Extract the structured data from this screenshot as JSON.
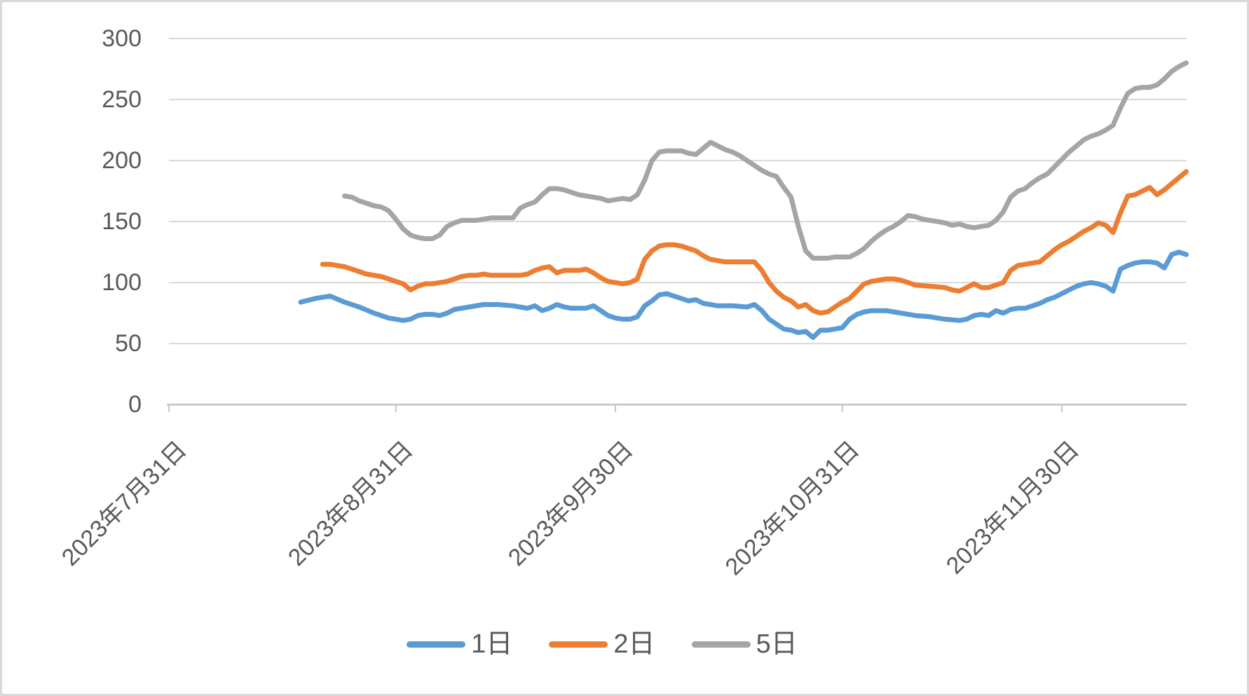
{
  "chart_data": {
    "type": "line",
    "title": "",
    "xlabel": "",
    "ylabel": "",
    "grid": true,
    "legend_position": "bottom",
    "ylim": [
      0,
      300
    ],
    "y_ticks": [
      0,
      50,
      100,
      150,
      200,
      250,
      300
    ],
    "x_axis": {
      "unit": "days since 2023-07-31 (date axis)",
      "tick_day_offsets": [
        0,
        31,
        61,
        92,
        122
      ],
      "label_dates": [
        "2023年7月31日",
        "2023年8月31日",
        "2023年9月30日",
        "2023年10月31日",
        "2023年11月30日"
      ]
    },
    "colors": {
      "background": "#FFFFFF",
      "frame_border": "#D9D9D9",
      "gridline": "#D9D9D9",
      "axis_line": "#C8C8C8",
      "text": "#595959"
    },
    "series": [
      {
        "name": "1日",
        "color": "#5B9BD5",
        "points": [
          [
            18,
            84
          ],
          [
            20,
            87
          ],
          [
            21,
            88
          ],
          [
            22,
            89
          ],
          [
            24,
            84
          ],
          [
            26,
            80
          ],
          [
            28,
            75
          ],
          [
            30,
            71
          ],
          [
            31,
            70
          ],
          [
            32,
            69
          ],
          [
            33,
            70
          ],
          [
            34,
            73
          ],
          [
            35,
            74
          ],
          [
            36,
            74
          ],
          [
            37,
            73
          ],
          [
            38,
            75
          ],
          [
            39,
            78
          ],
          [
            41,
            80
          ],
          [
            43,
            82
          ],
          [
            45,
            82
          ],
          [
            47,
            81
          ],
          [
            49,
            79
          ],
          [
            50,
            81
          ],
          [
            51,
            77
          ],
          [
            52,
            79
          ],
          [
            53,
            82
          ],
          [
            54,
            80
          ],
          [
            55,
            79
          ],
          [
            57,
            79
          ],
          [
            58,
            81
          ],
          [
            59,
            77
          ],
          [
            60,
            73
          ],
          [
            61,
            71
          ],
          [
            62,
            70
          ],
          [
            63,
            70
          ],
          [
            64,
            72
          ],
          [
            65,
            81
          ],
          [
            66,
            85
          ],
          [
            67,
            90
          ],
          [
            68,
            91
          ],
          [
            69,
            89
          ],
          [
            70,
            87
          ],
          [
            71,
            85
          ],
          [
            72,
            86
          ],
          [
            73,
            83
          ],
          [
            74,
            82
          ],
          [
            75,
            81
          ],
          [
            77,
            81
          ],
          [
            79,
            80
          ],
          [
            80,
            82
          ],
          [
            81,
            77
          ],
          [
            82,
            70
          ],
          [
            83,
            66
          ],
          [
            84,
            62
          ],
          [
            85,
            61
          ],
          [
            86,
            59
          ],
          [
            87,
            60
          ],
          [
            88,
            55
          ],
          [
            89,
            61
          ],
          [
            90,
            61
          ],
          [
            91,
            62
          ],
          [
            92,
            63
          ],
          [
            93,
            70
          ],
          [
            94,
            74
          ],
          [
            95,
            76
          ],
          [
            96,
            77
          ],
          [
            98,
            77
          ],
          [
            99,
            76
          ],
          [
            100,
            75
          ],
          [
            102,
            73
          ],
          [
            104,
            72
          ],
          [
            106,
            70
          ],
          [
            108,
            69
          ],
          [
            109,
            70
          ],
          [
            110,
            73
          ],
          [
            111,
            74
          ],
          [
            112,
            73
          ],
          [
            113,
            77
          ],
          [
            114,
            75
          ],
          [
            115,
            78
          ],
          [
            116,
            79
          ],
          [
            117,
            79
          ],
          [
            118,
            81
          ],
          [
            119,
            83
          ],
          [
            120,
            86
          ],
          [
            121,
            88
          ],
          [
            122,
            91
          ],
          [
            123,
            94
          ],
          [
            124,
            97
          ],
          [
            125,
            99
          ],
          [
            126,
            100
          ],
          [
            127,
            99
          ],
          [
            128,
            97
          ],
          [
            129,
            93
          ],
          [
            130,
            111
          ],
          [
            131,
            114
          ],
          [
            132,
            116
          ],
          [
            133,
            117
          ],
          [
            134,
            117
          ],
          [
            135,
            116
          ],
          [
            136,
            112
          ],
          [
            137,
            123
          ],
          [
            138,
            125
          ],
          [
            139,
            123
          ]
        ]
      },
      {
        "name": "2日",
        "color": "#ED7D31",
        "points": [
          [
            21,
            115
          ],
          [
            22,
            115
          ],
          [
            23,
            114
          ],
          [
            24,
            113
          ],
          [
            25,
            111
          ],
          [
            26,
            109
          ],
          [
            27,
            107
          ],
          [
            28,
            106
          ],
          [
            29,
            105
          ],
          [
            30,
            103
          ],
          [
            31,
            101
          ],
          [
            32,
            99
          ],
          [
            33,
            94
          ],
          [
            34,
            97
          ],
          [
            35,
            99
          ],
          [
            36,
            99
          ],
          [
            37,
            100
          ],
          [
            38,
            101
          ],
          [
            39,
            103
          ],
          [
            40,
            105
          ],
          [
            41,
            106
          ],
          [
            42,
            106
          ],
          [
            43,
            107
          ],
          [
            44,
            106
          ],
          [
            46,
            106
          ],
          [
            48,
            106
          ],
          [
            49,
            107
          ],
          [
            50,
            110
          ],
          [
            51,
            112
          ],
          [
            52,
            113
          ],
          [
            53,
            108
          ],
          [
            54,
            110
          ],
          [
            55,
            110
          ],
          [
            56,
            110
          ],
          [
            57,
            111
          ],
          [
            58,
            108
          ],
          [
            59,
            104
          ],
          [
            60,
            101
          ],
          [
            61,
            100
          ],
          [
            62,
            99
          ],
          [
            63,
            100
          ],
          [
            64,
            103
          ],
          [
            65,
            119
          ],
          [
            66,
            126
          ],
          [
            67,
            130
          ],
          [
            68,
            131
          ],
          [
            69,
            131
          ],
          [
            70,
            130
          ],
          [
            71,
            128
          ],
          [
            72,
            126
          ],
          [
            73,
            122
          ],
          [
            74,
            119
          ],
          [
            75,
            118
          ],
          [
            76,
            117
          ],
          [
            78,
            117
          ],
          [
            80,
            117
          ],
          [
            81,
            110
          ],
          [
            82,
            100
          ],
          [
            83,
            93
          ],
          [
            84,
            88
          ],
          [
            85,
            85
          ],
          [
            86,
            80
          ],
          [
            87,
            82
          ],
          [
            88,
            77
          ],
          [
            89,
            75
          ],
          [
            90,
            76
          ],
          [
            91,
            80
          ],
          [
            92,
            84
          ],
          [
            93,
            87
          ],
          [
            94,
            93
          ],
          [
            95,
            99
          ],
          [
            96,
            101
          ],
          [
            97,
            102
          ],
          [
            98,
            103
          ],
          [
            99,
            103
          ],
          [
            100,
            102
          ],
          [
            101,
            100
          ],
          [
            102,
            98
          ],
          [
            104,
            97
          ],
          [
            106,
            96
          ],
          [
            107,
            94
          ],
          [
            108,
            93
          ],
          [
            109,
            96
          ],
          [
            110,
            99
          ],
          [
            111,
            96
          ],
          [
            112,
            96
          ],
          [
            113,
            98
          ],
          [
            114,
            100
          ],
          [
            115,
            110
          ],
          [
            116,
            114
          ],
          [
            117,
            115
          ],
          [
            118,
            116
          ],
          [
            119,
            117
          ],
          [
            120,
            122
          ],
          [
            121,
            127
          ],
          [
            122,
            131
          ],
          [
            123,
            134
          ],
          [
            124,
            138
          ],
          [
            125,
            142
          ],
          [
            126,
            145
          ],
          [
            127,
            149
          ],
          [
            128,
            147
          ],
          [
            129,
            141
          ],
          [
            130,
            157
          ],
          [
            131,
            171
          ],
          [
            132,
            172
          ],
          [
            133,
            175
          ],
          [
            134,
            178
          ],
          [
            135,
            172
          ],
          [
            136,
            176
          ],
          [
            137,
            181
          ],
          [
            138,
            186
          ],
          [
            139,
            191
          ]
        ]
      },
      {
        "name": "5日",
        "color": "#A5A5A5",
        "points": [
          [
            24,
            171
          ],
          [
            25,
            170
          ],
          [
            26,
            167
          ],
          [
            27,
            165
          ],
          [
            28,
            163
          ],
          [
            29,
            162
          ],
          [
            30,
            159
          ],
          [
            31,
            152
          ],
          [
            32,
            144
          ],
          [
            33,
            139
          ],
          [
            34,
            137
          ],
          [
            35,
            136
          ],
          [
            36,
            136
          ],
          [
            37,
            139
          ],
          [
            38,
            146
          ],
          [
            39,
            149
          ],
          [
            40,
            151
          ],
          [
            42,
            151
          ],
          [
            43,
            152
          ],
          [
            44,
            153
          ],
          [
            46,
            153
          ],
          [
            47,
            153
          ],
          [
            48,
            161
          ],
          [
            49,
            164
          ],
          [
            50,
            166
          ],
          [
            51,
            172
          ],
          [
            52,
            177
          ],
          [
            53,
            177
          ],
          [
            54,
            176
          ],
          [
            55,
            174
          ],
          [
            56,
            172
          ],
          [
            57,
            171
          ],
          [
            58,
            170
          ],
          [
            59,
            169
          ],
          [
            60,
            167
          ],
          [
            61,
            168
          ],
          [
            62,
            169
          ],
          [
            63,
            168
          ],
          [
            64,
            172
          ],
          [
            65,
            184
          ],
          [
            66,
            200
          ],
          [
            67,
            207
          ],
          [
            68,
            208
          ],
          [
            69,
            208
          ],
          [
            70,
            208
          ],
          [
            71,
            206
          ],
          [
            72,
            205
          ],
          [
            73,
            210
          ],
          [
            74,
            215
          ],
          [
            75,
            212
          ],
          [
            76,
            209
          ],
          [
            77,
            207
          ],
          [
            78,
            204
          ],
          [
            79,
            200
          ],
          [
            80,
            196
          ],
          [
            81,
            192
          ],
          [
            82,
            189
          ],
          [
            83,
            187
          ],
          [
            84,
            178
          ],
          [
            85,
            170
          ],
          [
            86,
            146
          ],
          [
            87,
            126
          ],
          [
            88,
            120
          ],
          [
            89,
            120
          ],
          [
            90,
            120
          ],
          [
            91,
            121
          ],
          [
            92,
            121
          ],
          [
            93,
            121
          ],
          [
            94,
            124
          ],
          [
            95,
            128
          ],
          [
            96,
            134
          ],
          [
            97,
            139
          ],
          [
            98,
            143
          ],
          [
            99,
            146
          ],
          [
            100,
            150
          ],
          [
            101,
            155
          ],
          [
            102,
            154
          ],
          [
            103,
            152
          ],
          [
            104,
            151
          ],
          [
            105,
            150
          ],
          [
            106,
            149
          ],
          [
            107,
            147
          ],
          [
            108,
            148
          ],
          [
            109,
            146
          ],
          [
            110,
            145
          ],
          [
            111,
            146
          ],
          [
            112,
            147
          ],
          [
            113,
            151
          ],
          [
            114,
            158
          ],
          [
            115,
            170
          ],
          [
            116,
            175
          ],
          [
            117,
            177
          ],
          [
            118,
            182
          ],
          [
            119,
            186
          ],
          [
            120,
            189
          ],
          [
            121,
            195
          ],
          [
            122,
            201
          ],
          [
            123,
            207
          ],
          [
            124,
            212
          ],
          [
            125,
            217
          ],
          [
            126,
            220
          ],
          [
            127,
            222
          ],
          [
            128,
            225
          ],
          [
            129,
            229
          ],
          [
            130,
            243
          ],
          [
            131,
            255
          ],
          [
            132,
            259
          ],
          [
            133,
            260
          ],
          [
            134,
            260
          ],
          [
            135,
            262
          ],
          [
            136,
            267
          ],
          [
            137,
            273
          ],
          [
            138,
            277
          ],
          [
            139,
            280
          ]
        ]
      }
    ]
  }
}
